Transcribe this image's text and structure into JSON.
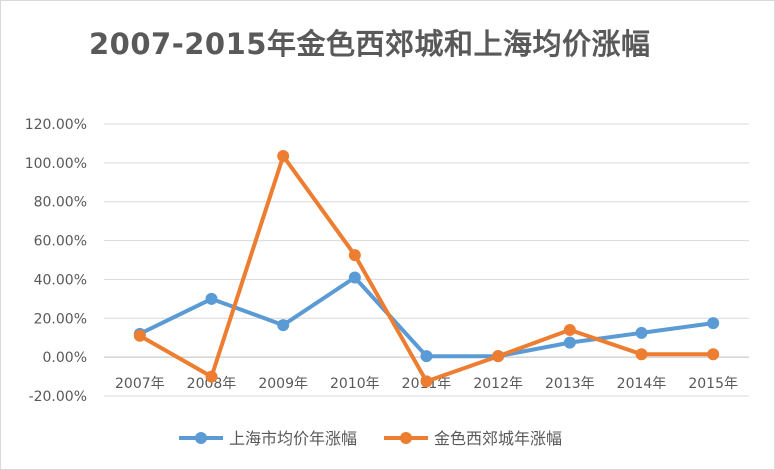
{
  "chart_data": {
    "type": "line",
    "title": "2007-2015年金色西郊城和上海均价涨幅",
    "categories": [
      "2007年",
      "2008年",
      "2009年",
      "2010年",
      "2011年",
      "2012年",
      "2013年",
      "2014年",
      "2015年"
    ],
    "series": [
      {
        "name": "上海市均价年涨幅",
        "color": "#5b9bd5",
        "values": [
          12,
          30,
          16.5,
          41,
          0.5,
          0.5,
          7.5,
          12.5,
          17.5
        ]
      },
      {
        "name": "金色西郊城年涨幅",
        "color": "#ed7d31",
        "values": [
          11,
          -10,
          103.5,
          52.5,
          -12.5,
          0.5,
          14,
          1.5,
          1.5
        ]
      }
    ],
    "y_ticks": [
      "120.00%",
      "100.00%",
      "80.00%",
      "60.00%",
      "40.00%",
      "20.00%",
      "0.00%",
      "-20.00%"
    ],
    "ylim": [
      -20,
      120
    ],
    "grid": true,
    "legend_position": "bottom"
  }
}
